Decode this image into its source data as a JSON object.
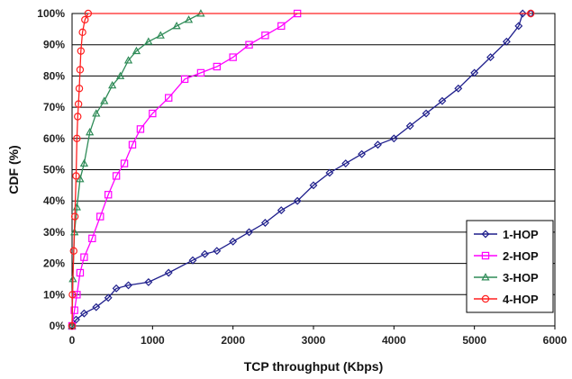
{
  "chart_data": {
    "type": "line",
    "xlabel": "TCP throughput (Kbps)",
    "ylabel": "CDF (%)",
    "xlim": [
      0,
      6000
    ],
    "ylim": [
      0,
      100
    ],
    "x_ticks": [
      "0",
      "1000",
      "2000",
      "3000",
      "4000",
      "5000",
      "6000"
    ],
    "y_ticks": [
      "0%",
      "10%",
      "20%",
      "30%",
      "40%",
      "50%",
      "60%",
      "70%",
      "80%",
      "90%",
      "100%"
    ],
    "grid": "horizontal",
    "legend_position": "bottom-right",
    "series": [
      {
        "name": "1-HOP",
        "color": "#1f1f8c",
        "marker": "diamond",
        "points": [
          [
            0,
            0
          ],
          [
            50,
            2
          ],
          [
            150,
            4
          ],
          [
            300,
            6
          ],
          [
            450,
            9
          ],
          [
            550,
            12
          ],
          [
            700,
            13
          ],
          [
            950,
            14
          ],
          [
            1200,
            17
          ],
          [
            1500,
            21
          ],
          [
            1650,
            23
          ],
          [
            1800,
            24
          ],
          [
            2000,
            27
          ],
          [
            2200,
            30
          ],
          [
            2400,
            33
          ],
          [
            2600,
            37
          ],
          [
            2800,
            40
          ],
          [
            3000,
            45
          ],
          [
            3200,
            49
          ],
          [
            3400,
            52
          ],
          [
            3600,
            55
          ],
          [
            3800,
            58
          ],
          [
            4000,
            60
          ],
          [
            4200,
            64
          ],
          [
            4400,
            68
          ],
          [
            4600,
            72
          ],
          [
            4800,
            76
          ],
          [
            5000,
            81
          ],
          [
            5200,
            86
          ],
          [
            5400,
            91
          ],
          [
            5550,
            96
          ],
          [
            5600,
            100
          ],
          [
            5700,
            100
          ]
        ]
      },
      {
        "name": "2-HOP",
        "color": "#ff00ff",
        "marker": "square",
        "points": [
          [
            0,
            0
          ],
          [
            30,
            5
          ],
          [
            60,
            10
          ],
          [
            100,
            17
          ],
          [
            150,
            22
          ],
          [
            250,
            28
          ],
          [
            350,
            35
          ],
          [
            450,
            42
          ],
          [
            550,
            48
          ],
          [
            650,
            52
          ],
          [
            750,
            58
          ],
          [
            850,
            63
          ],
          [
            1000,
            68
          ],
          [
            1200,
            73
          ],
          [
            1400,
            79
          ],
          [
            1600,
            81
          ],
          [
            1800,
            83
          ],
          [
            2000,
            86
          ],
          [
            2200,
            90
          ],
          [
            2400,
            93
          ],
          [
            2600,
            96
          ],
          [
            2800,
            100
          ]
        ]
      },
      {
        "name": "3-HOP",
        "color": "#2e8b57",
        "marker": "triangle",
        "points": [
          [
            0,
            0
          ],
          [
            10,
            15
          ],
          [
            30,
            30
          ],
          [
            60,
            38
          ],
          [
            100,
            47
          ],
          [
            150,
            52
          ],
          [
            220,
            62
          ],
          [
            300,
            68
          ],
          [
            400,
            72
          ],
          [
            500,
            77
          ],
          [
            600,
            80
          ],
          [
            700,
            85
          ],
          [
            800,
            88
          ],
          [
            950,
            91
          ],
          [
            1100,
            93
          ],
          [
            1300,
            96
          ],
          [
            1450,
            98
          ],
          [
            1600,
            100
          ]
        ]
      },
      {
        "name": "4-HOP",
        "color": "#ff2020",
        "marker": "circle",
        "points": [
          [
            0,
            0
          ],
          [
            5,
            10
          ],
          [
            20,
            24
          ],
          [
            35,
            35
          ],
          [
            50,
            48
          ],
          [
            60,
            60
          ],
          [
            70,
            67
          ],
          [
            80,
            71
          ],
          [
            90,
            76
          ],
          [
            100,
            82
          ],
          [
            110,
            88
          ],
          [
            130,
            94
          ],
          [
            160,
            98
          ],
          [
            200,
            100
          ],
          [
            5700,
            100
          ]
        ]
      }
    ]
  }
}
